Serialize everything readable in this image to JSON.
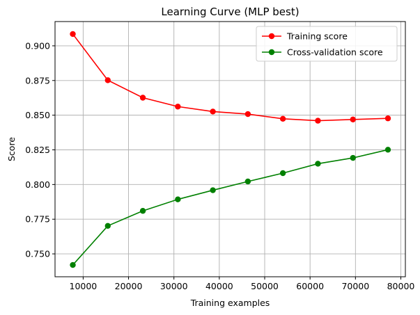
{
  "chart_data": {
    "type": "line",
    "title": "Learning Curve (MLP best)",
    "xlabel": "Training examples",
    "ylabel": "Score",
    "xlim": [
      3800,
      81000
    ],
    "ylim": [
      0.7335,
      0.9175
    ],
    "grid": true,
    "legend_position": "top-right",
    "x": [
      7716,
      15432,
      23148,
      30864,
      38580,
      46296,
      54012,
      61728,
      69444,
      77160
    ],
    "x_ticks": [
      10000,
      20000,
      30000,
      40000,
      50000,
      60000,
      70000,
      80000
    ],
    "x_tick_labels": [
      "10000",
      "20000",
      "30000",
      "40000",
      "50000",
      "60000",
      "70000",
      "80000"
    ],
    "y_ticks": [
      0.75,
      0.775,
      0.8,
      0.825,
      0.85,
      0.875,
      0.9
    ],
    "y_tick_labels": [
      "0.750",
      "0.775",
      "0.800",
      "0.825",
      "0.850",
      "0.875",
      "0.900"
    ],
    "series": [
      {
        "name": "Training score",
        "color": "#ff0000",
        "marker": "circle",
        "values": [
          0.9085,
          0.8752,
          0.8626,
          0.8562,
          0.8526,
          0.8508,
          0.8474,
          0.846,
          0.8469,
          0.8477
        ]
      },
      {
        "name": "Cross-validation score",
        "color": "#008000",
        "marker": "circle",
        "values": [
          0.742,
          0.7702,
          0.781,
          0.7893,
          0.7959,
          0.8022,
          0.8082,
          0.815,
          0.8192,
          0.8251
        ]
      }
    ]
  }
}
